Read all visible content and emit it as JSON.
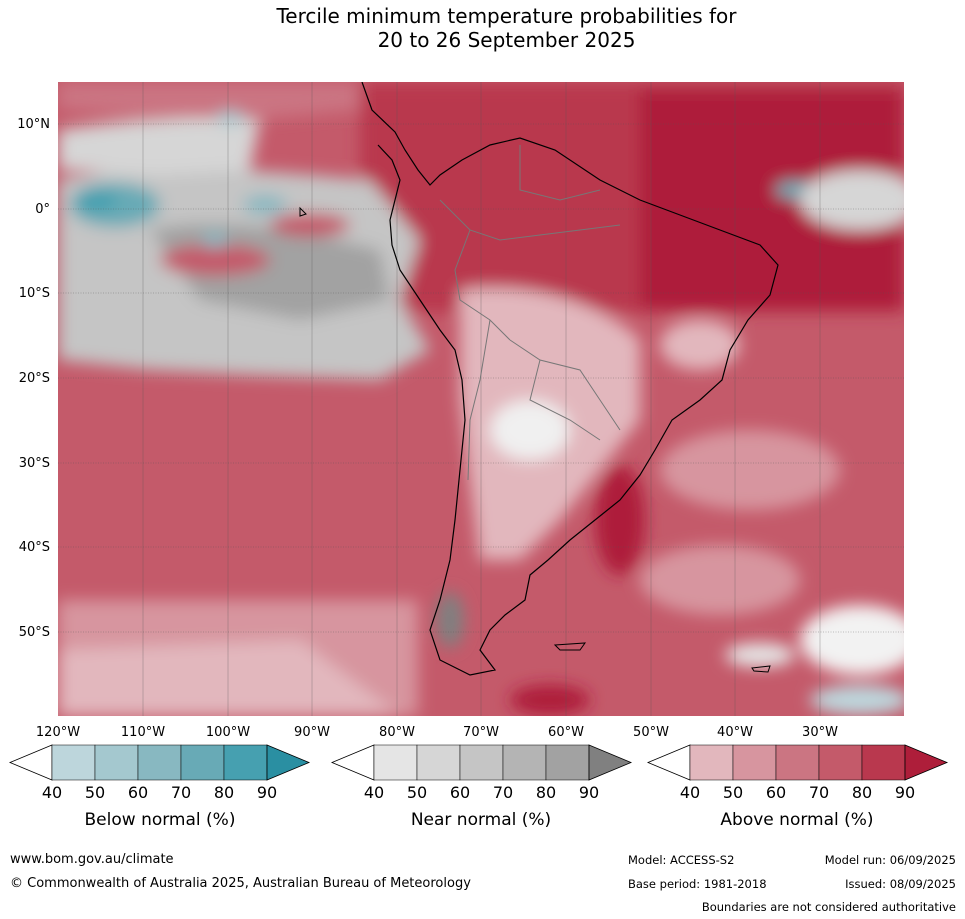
{
  "title": {
    "line1": "Tercile minimum temperature probabilities for",
    "line2": "20 to 26 September 2025"
  },
  "axes": {
    "lat_ticks": [
      "10°N",
      "0°",
      "10°S",
      "20°S",
      "30°S",
      "40°S",
      "50°S"
    ],
    "lon_ticks": [
      "120°W",
      "110°W",
      "100°W",
      "90°W",
      "80°W",
      "70°W",
      "60°W",
      "50°W",
      "40°W",
      "30°W"
    ]
  },
  "legend": {
    "below": {
      "label": "Below normal (%)",
      "ticks": [
        "40",
        "50",
        "60",
        "70",
        "80",
        "90"
      ],
      "colors": [
        "#ffffff",
        "#bdd6dc",
        "#a4c8cf",
        "#88b8c1",
        "#68aab6",
        "#46a0b0",
        "#2a8fa2"
      ]
    },
    "near": {
      "label": "Near normal (%)",
      "ticks": [
        "40",
        "50",
        "60",
        "70",
        "80",
        "90"
      ],
      "colors": [
        "#ffffff",
        "#e5e5e5",
        "#d6d6d6",
        "#c5c5c5",
        "#b4b4b4",
        "#a2a2a2",
        "#808080"
      ]
    },
    "above": {
      "label": "Above normal (%)",
      "ticks": [
        "40",
        "50",
        "60",
        "70",
        "80",
        "90"
      ],
      "colors": [
        "#ffffff",
        "#e2b7bd",
        "#d7959f",
        "#cb7582",
        "#c45a6a",
        "#b9384e",
        "#ae1e3a"
      ]
    }
  },
  "footer": {
    "url": "www.bom.gov.au/climate",
    "copyright": "© Commonwealth of Australia 2025, Australian Bureau of Meteorology",
    "model": "Model: ACCESS-S2",
    "model_run": "Model run: 06/09/2025",
    "base_period": "Base period: 1981-2018",
    "issued": "Issued: 08/09/2025",
    "disclaimer": "Boundaries are not considered authoritative"
  }
}
